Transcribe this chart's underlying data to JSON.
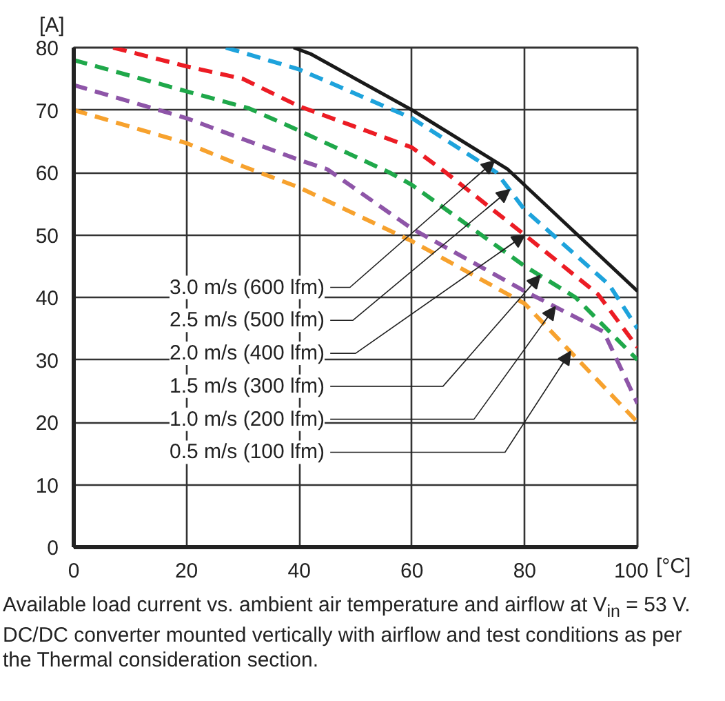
{
  "chart_data": {
    "type": "line",
    "xlabel": "[°C]",
    "ylabel": "[A]",
    "xlim": [
      0,
      100
    ],
    "ylim": [
      0,
      80
    ],
    "xticks": [
      0,
      20,
      40,
      60,
      80,
      100
    ],
    "yticks": [
      0,
      10,
      20,
      30,
      40,
      50,
      60,
      70,
      80
    ],
    "grid": true,
    "legend": "left",
    "series": [
      {
        "name": "3.0 m/s (600 lfm)",
        "color": "#1a1a1a",
        "line_style": "solid",
        "x": [
          39,
          42,
          60,
          77,
          100
        ],
        "values": [
          80,
          79,
          70,
          60.5,
          41
        ]
      },
      {
        "name": "2.5 m/s (500 lfm)",
        "color": "#1ea3dc",
        "line_style": "dashed",
        "x": [
          27,
          40,
          60,
          75,
          80,
          95,
          100
        ],
        "values": [
          80,
          76.5,
          68.7,
          60,
          54,
          42,
          35
        ]
      },
      {
        "name": "2.0 m/s (400 lfm)",
        "color": "#ec1c24",
        "line_style": "dashed",
        "x": [
          7,
          20,
          30,
          40,
          60,
          66,
          80,
          93,
          100
        ],
        "values": [
          80,
          77,
          75,
          70.6,
          64,
          60,
          50,
          40.5,
          32
        ]
      },
      {
        "name": "1.5 m/s (300 lfm)",
        "color": "#1fa84a",
        "line_style": "dashed",
        "x": [
          0,
          20,
          31,
          40,
          56,
          60,
          80,
          89,
          100
        ],
        "values": [
          78,
          73,
          70.3,
          66.7,
          60,
          58,
          45,
          40,
          30
        ]
      },
      {
        "name": "1.0 m/s (200 lfm)",
        "color": "#8e55a8",
        "line_style": "dashed",
        "x": [
          0,
          20,
          40,
          45,
          60,
          80,
          94,
          100
        ],
        "values": [
          74,
          68.7,
          62,
          60.5,
          51,
          41,
          34.5,
          23
        ]
      },
      {
        "name": "0.5 m/s (100 lfm)",
        "color": "#f7a22e",
        "line_style": "dashed",
        "x": [
          0,
          20,
          30,
          40,
          60,
          80,
          100
        ],
        "values": [
          70,
          64.7,
          61,
          57.6,
          49,
          39,
          20
        ]
      }
    ],
    "annotations": [
      "Available load current vs. ambient air temperature and airflow at V$_{in}$ = 53 V. DC/DC converter mounted vertically with airflow and test conditions as per the Thermal consideration section."
    ]
  }
}
